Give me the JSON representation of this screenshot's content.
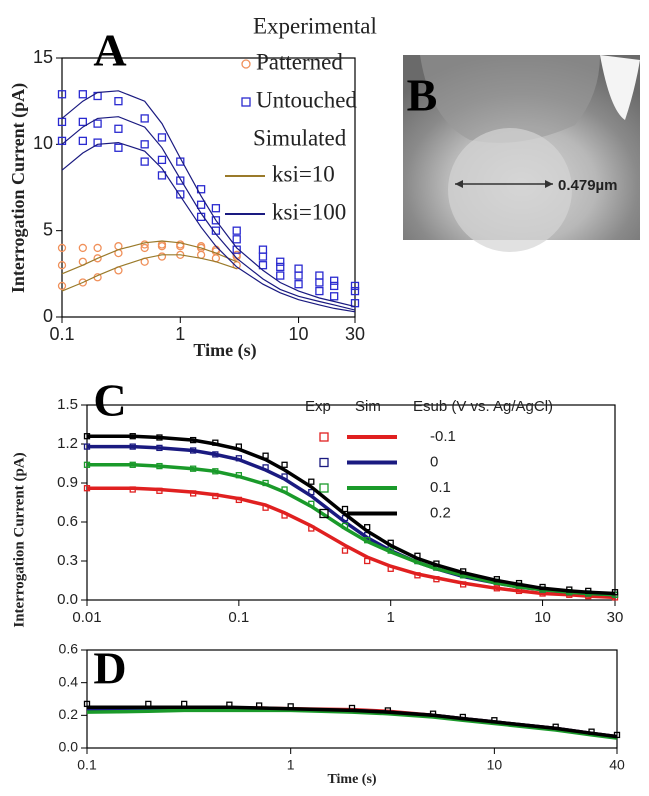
{
  "chart_data": [
    {
      "type": "line",
      "panel_label": "A",
      "xlabel": "Time (s)",
      "ylabel": "Interrogation Current (pA)",
      "xscale": "log",
      "xlim": [
        0.1,
        30
      ],
      "xticks": [
        0.1,
        1,
        10,
        30
      ],
      "ylim": [
        0,
        15
      ],
      "yticks": [
        0,
        5,
        10,
        15
      ],
      "x": [
        0.1,
        0.15,
        0.2,
        0.3,
        0.5,
        0.7,
        1,
        1.5,
        2,
        3,
        5,
        7,
        10,
        15,
        20,
        30
      ],
      "groups": [
        {
          "title": "Experimental",
          "series": [
            {
              "name": "Patterned",
              "color": "#f0905a",
              "marker": "circle",
              "curves": [
                [
                  4.0,
                  4.0,
                  4.0,
                  4.1,
                  4.2,
                  4.2,
                  4.2,
                  4.1,
                  3.9,
                  3.6,
                  null,
                  null,
                  null,
                  null,
                  null,
                  null
                ],
                [
                  3.0,
                  3.2,
                  3.4,
                  3.7,
                  4.0,
                  4.1,
                  4.1,
                  4.0,
                  3.8,
                  3.5,
                  null,
                  null,
                  null,
                  null,
                  null,
                  null
                ],
                [
                  1.8,
                  2.0,
                  2.3,
                  2.7,
                  3.2,
                  3.5,
                  3.6,
                  3.6,
                  3.4,
                  3.0,
                  null,
                  null,
                  null,
                  null,
                  null,
                  null
                ]
              ]
            },
            {
              "name": "Untouched",
              "color": "#2a2ad0",
              "marker": "square",
              "curves": [
                [
                  12.9,
                  12.9,
                  12.8,
                  12.5,
                  11.5,
                  10.4,
                  9.0,
                  7.4,
                  6.3,
                  5.0,
                  3.9,
                  3.2,
                  2.8,
                  2.4,
                  2.1,
                  1.8
                ],
                [
                  11.3,
                  11.3,
                  11.2,
                  10.9,
                  10.0,
                  9.1,
                  7.9,
                  6.5,
                  5.6,
                  4.5,
                  3.5,
                  2.9,
                  2.4,
                  2.0,
                  1.8,
                  1.5
                ],
                [
                  10.2,
                  10.2,
                  10.1,
                  9.8,
                  9.0,
                  8.2,
                  7.1,
                  5.8,
                  5.0,
                  3.9,
                  3.0,
                  2.4,
                  1.9,
                  1.5,
                  1.2,
                  0.8
                ]
              ]
            }
          ]
        },
        {
          "title": "Simulated",
          "series": [
            {
              "name": "ksi=10",
              "color": "#9a7a2a",
              "marker": "line",
              "curves": [
                [
                  2.5,
                  3.0,
                  3.4,
                  3.9,
                  4.3,
                  4.4,
                  4.3,
                  4.0,
                  3.7,
                  3.2,
                  null,
                  null,
                  null,
                  null,
                  null,
                  null
                ],
                [
                  1.5,
                  2.0,
                  2.4,
                  2.9,
                  3.4,
                  3.6,
                  3.6,
                  3.4,
                  3.2,
                  2.8,
                  null,
                  null,
                  null,
                  null,
                  null,
                  null
                ]
              ]
            },
            {
              "name": "ksi=100",
              "color": "#1a1a80",
              "marker": "line",
              "curves": [
                [
                  11.5,
                  12.5,
                  13.0,
                  13.1,
                  12.5,
                  11.2,
                  9.2,
                  7.0,
                  5.6,
                  4.0,
                  2.7,
                  2.0,
                  1.5,
                  1.1,
                  0.9,
                  0.6
                ],
                [
                  10.0,
                  11.0,
                  11.5,
                  11.6,
                  11.0,
                  9.8,
                  8.0,
                  6.0,
                  4.8,
                  3.4,
                  2.2,
                  1.6,
                  1.2,
                  0.9,
                  0.7,
                  0.4
                ],
                [
                  8.5,
                  9.5,
                  10.0,
                  10.1,
                  9.6,
                  8.6,
                  7.0,
                  5.2,
                  4.1,
                  2.9,
                  1.9,
                  1.4,
                  1.0,
                  0.7,
                  0.5,
                  0.3
                ]
              ]
            }
          ]
        }
      ]
    },
    {
      "type": "image",
      "panel_label": "B",
      "annotation": "0.479µm"
    },
    {
      "type": "line",
      "panel_label": "C",
      "ylabel": "Interrogation Current (pA)",
      "xscale": "log",
      "xlim": [
        0.01,
        30
      ],
      "xticks": [
        0.01,
        0.1,
        1,
        10,
        30
      ],
      "ylim": [
        0,
        1.5
      ],
      "yticks": [
        {
          "value": 0,
          "label": "0.0"
        },
        0.3,
        0.6,
        0.9,
        1.2,
        1.5
      ],
      "legend_headers": [
        "Exp",
        "Sim"
      ],
      "legend_title": "Esub (V vs. Ag/AgCl)",
      "x": [
        0.01,
        0.02,
        0.03,
        0.05,
        0.07,
        0.1,
        0.15,
        0.2,
        0.3,
        0.5,
        0.7,
        1,
        1.5,
        2,
        3,
        5,
        7,
        10,
        15,
        20,
        30
      ],
      "series": [
        {
          "name": "-0.1",
          "color": "#e02020",
          "exp": [
            0.86,
            0.85,
            0.84,
            0.82,
            0.8,
            0.77,
            0.71,
            0.65,
            0.55,
            0.38,
            0.3,
            0.24,
            0.19,
            0.16,
            0.12,
            0.09,
            0.07,
            0.05,
            0.04,
            0.03,
            0.02
          ],
          "sim": [
            0.86,
            0.86,
            0.85,
            0.83,
            0.81,
            0.78,
            0.73,
            0.67,
            0.57,
            0.42,
            0.33,
            0.26,
            0.2,
            0.17,
            0.13,
            0.09,
            0.07,
            0.05,
            0.04,
            0.03,
            0.02
          ]
        },
        {
          "name": "0",
          "color": "#1a1a80",
          "exp": [
            1.18,
            1.18,
            1.17,
            1.15,
            1.12,
            1.09,
            1.02,
            0.95,
            0.83,
            0.63,
            0.5,
            0.4,
            0.3,
            0.25,
            0.19,
            0.14,
            0.11,
            0.08,
            0.06,
            0.05,
            0.04
          ],
          "sim": [
            1.18,
            1.18,
            1.17,
            1.15,
            1.12,
            1.08,
            1.0,
            0.93,
            0.8,
            0.6,
            0.48,
            0.38,
            0.29,
            0.24,
            0.18,
            0.13,
            0.1,
            0.08,
            0.06,
            0.05,
            0.04
          ]
        },
        {
          "name": "0.1",
          "color": "#1a9a2a",
          "exp": [
            1.04,
            1.04,
            1.03,
            1.01,
            0.99,
            0.96,
            0.9,
            0.85,
            0.74,
            0.57,
            0.46,
            0.38,
            0.3,
            0.25,
            0.19,
            0.14,
            0.11,
            0.08,
            0.06,
            0.05,
            0.04
          ],
          "sim": [
            1.04,
            1.04,
            1.03,
            1.01,
            0.99,
            0.95,
            0.89,
            0.83,
            0.72,
            0.55,
            0.45,
            0.37,
            0.29,
            0.24,
            0.19,
            0.13,
            0.1,
            0.08,
            0.06,
            0.05,
            0.04
          ]
        },
        {
          "name": "0.2",
          "color": "#000000",
          "exp": [
            1.26,
            1.26,
            1.25,
            1.23,
            1.21,
            1.18,
            1.11,
            1.04,
            0.91,
            0.7,
            0.56,
            0.44,
            0.34,
            0.28,
            0.22,
            0.16,
            0.13,
            0.1,
            0.08,
            0.07,
            0.06
          ],
          "sim": [
            1.26,
            1.26,
            1.25,
            1.23,
            1.2,
            1.16,
            1.08,
            1.0,
            0.87,
            0.66,
            0.53,
            0.42,
            0.32,
            0.27,
            0.21,
            0.15,
            0.12,
            0.09,
            0.07,
            0.06,
            0.05
          ]
        }
      ]
    },
    {
      "type": "line",
      "panel_label": "D",
      "xlabel": "Time (s)",
      "xscale": "log",
      "xlim": [
        0.1,
        40
      ],
      "xticks": [
        0.1,
        1,
        10,
        40
      ],
      "ylim": [
        0,
        0.6
      ],
      "yticks": [
        {
          "value": 0,
          "label": "0.0"
        },
        0.2,
        0.4,
        0.6
      ],
      "x": [
        0.1,
        0.2,
        0.3,
        0.5,
        0.7,
        1,
        2,
        3,
        5,
        7,
        10,
        20,
        30,
        40
      ],
      "series": [
        {
          "color": "#e02020",
          "sim": [
            0.24,
            0.245,
            0.245,
            0.245,
            0.245,
            0.24,
            0.235,
            0.225,
            0.2,
            0.18,
            0.16,
            0.12,
            0.09,
            0.07
          ]
        },
        {
          "color": "#1a1a80",
          "sim": [
            0.23,
            0.235,
            0.24,
            0.24,
            0.24,
            0.235,
            0.23,
            0.22,
            0.2,
            0.18,
            0.16,
            0.12,
            0.09,
            0.07
          ]
        },
        {
          "color": "#1a9a2a",
          "sim": [
            0.22,
            0.225,
            0.23,
            0.23,
            0.23,
            0.23,
            0.22,
            0.21,
            0.19,
            0.17,
            0.15,
            0.11,
            0.08,
            0.06
          ]
        },
        {
          "color": "#000000",
          "exp": [
            0.27,
            0.27,
            0.27,
            0.265,
            0.26,
            0.255,
            0.245,
            0.23,
            0.21,
            0.19,
            0.17,
            0.13,
            0.1,
            0.08
          ],
          "sim": [
            0.25,
            0.25,
            0.25,
            0.25,
            0.245,
            0.24,
            0.23,
            0.22,
            0.2,
            0.18,
            0.16,
            0.12,
            0.09,
            0.07
          ]
        }
      ]
    }
  ]
}
